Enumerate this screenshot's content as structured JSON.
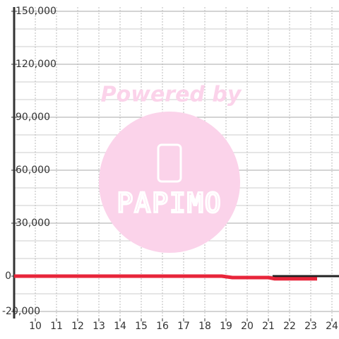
{
  "chart_data": {
    "type": "line",
    "annotations": [
      "Powered by",
      "PAPIMO"
    ],
    "x_is_numeric": true,
    "xlim": [
      9,
      24.6
    ],
    "xticks": [
      10,
      11,
      12,
      13,
      14,
      15,
      16,
      17,
      18,
      19,
      20,
      21,
      22,
      23,
      24
    ],
    "ylim": [
      -24000,
      150000
    ],
    "yticks": [
      {
        "value": -20000,
        "label": "-20,000"
      },
      0,
      {
        "value": 30000,
        "label": "30,000"
      },
      {
        "value": 60000,
        "label": "60,000"
      },
      {
        "value": 90000,
        "label": "90,000"
      },
      {
        "value": 120000,
        "label": "120,000"
      },
      {
        "value": 150000,
        "label": "150,000"
      }
    ],
    "grid": true,
    "minor_grid_step": 10000,
    "series": [
      {
        "color": "#222222",
        "x": [
          21.2,
          24.6
        ],
        "values": [
          0,
          0
        ]
      },
      {
        "color": "#e8253a",
        "x": [
          9,
          18.8,
          19.3,
          21,
          21.3,
          23.3
        ],
        "values": [
          0,
          0,
          -800,
          -800,
          -1500,
          -1500
        ]
      }
    ]
  }
}
